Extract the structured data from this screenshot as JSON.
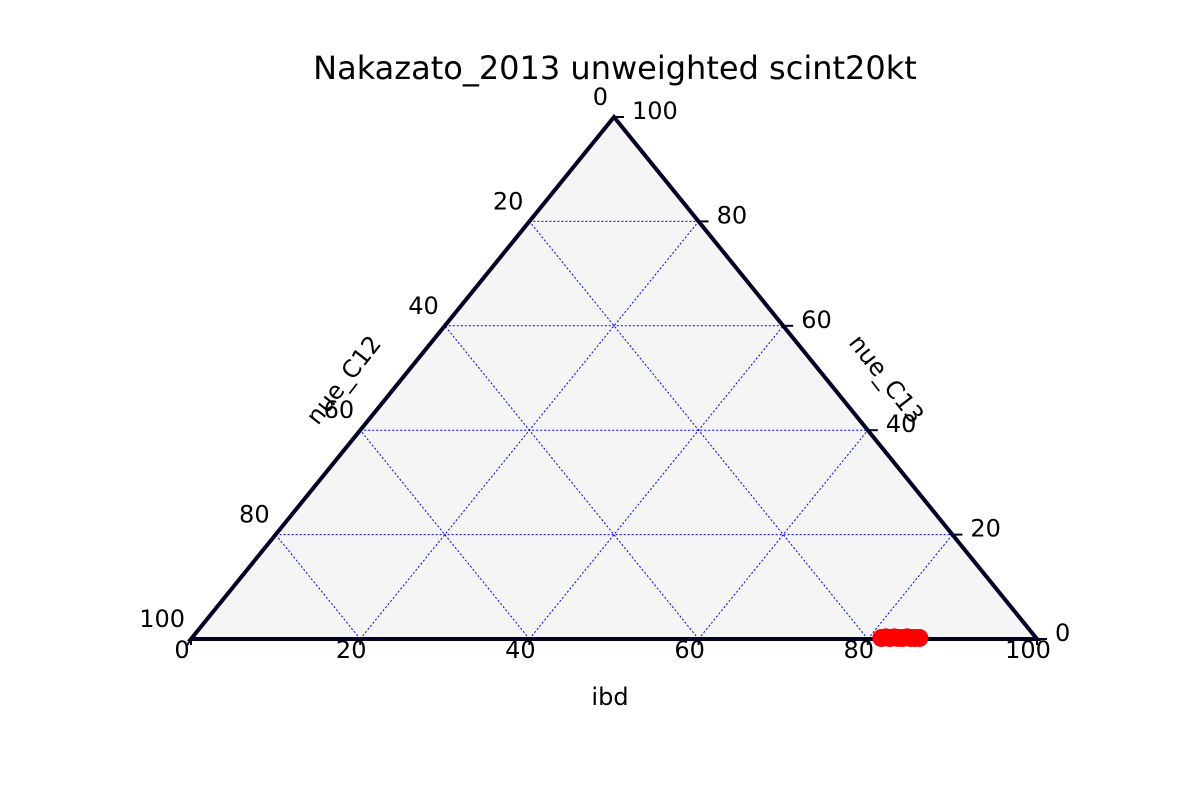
{
  "chart_data": {
    "type": "scatter",
    "subtype": "ternary",
    "title": "Nakazato_2013 unweighted scint20kt",
    "axes": {
      "bottom": {
        "label": "ibd",
        "ticks": [
          "0",
          "20",
          "40",
          "60",
          "80",
          "100"
        ]
      },
      "right": {
        "label": "nue_C13",
        "ticks": [
          "0",
          "20",
          "40",
          "60",
          "80",
          "100"
        ]
      },
      "left": {
        "label": "nue_C12",
        "ticks": [
          "0",
          "20",
          "40",
          "60",
          "80",
          "100"
        ]
      }
    },
    "range": [
      0,
      100
    ],
    "grid": true,
    "grid_step": 20,
    "colors": {
      "frame": "#000022",
      "fill": "#f5f5f5",
      "grid": "#0000ff",
      "points": "#ff0000"
    },
    "series": [
      {
        "points": [
          {
            "ibd": 81.5,
            "nue_C13": 0.2
          },
          {
            "ibd": 82.0,
            "nue_C13": 0.3
          },
          {
            "ibd": 82.5,
            "nue_C13": 0.2
          },
          {
            "ibd": 83.0,
            "nue_C13": 0.3
          },
          {
            "ibd": 83.5,
            "nue_C13": 0.2
          },
          {
            "ibd": 84.0,
            "nue_C13": 0.2
          },
          {
            "ibd": 84.5,
            "nue_C13": 0.3
          },
          {
            "ibd": 85.0,
            "nue_C13": 0.2
          },
          {
            "ibd": 85.5,
            "nue_C13": 0.2
          },
          {
            "ibd": 86.0,
            "nue_C13": 0.2
          }
        ]
      }
    ]
  }
}
